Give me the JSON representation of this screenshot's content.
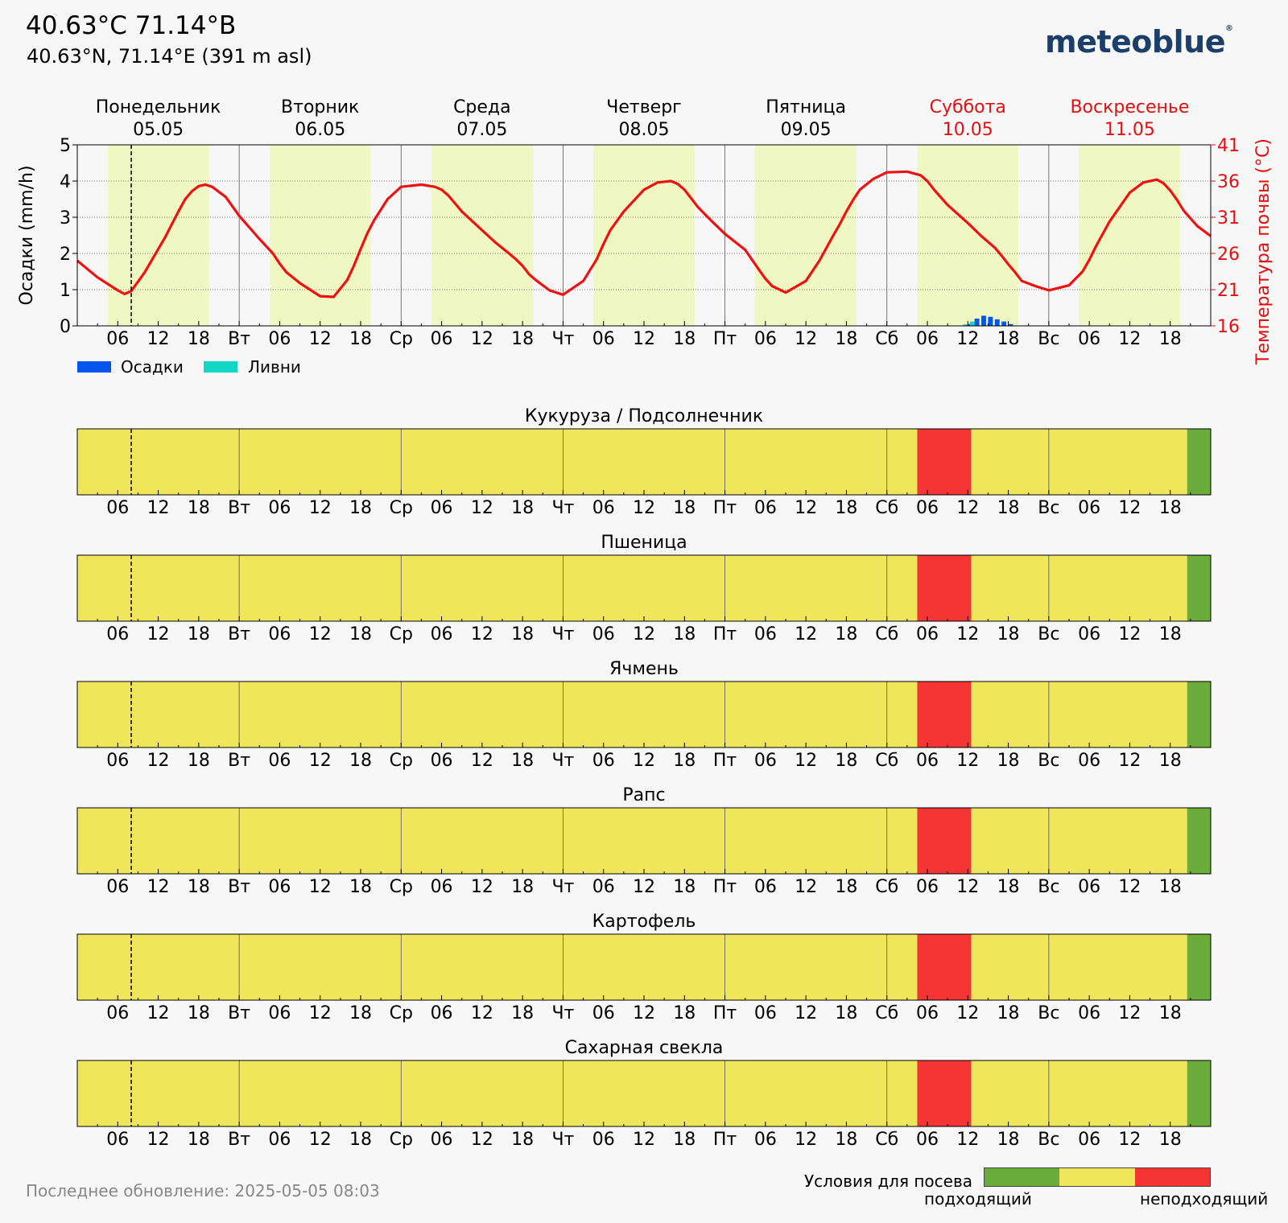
{
  "header": {
    "title": "40.63°C 71.14°B",
    "subtitle": "40.63°N, 71.14°E (391 m asl)",
    "logo": "meteoblue",
    "logo_mark": "®"
  },
  "days": [
    {
      "name": "Понедельник",
      "date": "05.05",
      "weekend": false
    },
    {
      "name": "Вторник",
      "date": "06.05",
      "weekend": false
    },
    {
      "name": "Среда",
      "date": "07.05",
      "weekend": false
    },
    {
      "name": "Четверг",
      "date": "08.05",
      "weekend": false
    },
    {
      "name": "Пятница",
      "date": "09.05",
      "weekend": false
    },
    {
      "name": "Суббота",
      "date": "10.05",
      "weekend": true
    },
    {
      "name": "Воскресенье",
      "date": "11.05",
      "weekend": true
    }
  ],
  "x_tick_labels": [
    "",
    "06",
    "12",
    "18",
    "Вт",
    "06",
    "12",
    "18",
    "Ср",
    "06",
    "12",
    "18",
    "Чт",
    "06",
    "12",
    "18",
    "Пт",
    "06",
    "12",
    "18",
    "Сб",
    "06",
    "12",
    "18",
    "Вс",
    "06",
    "12",
    "18"
  ],
  "chart_data": [
    {
      "type": "line",
      "name": "precipitation-soil-temperature",
      "x_unit": "hours since 2025-05-05 00:00",
      "x_range": [
        0,
        168
      ],
      "now_marker": 8,
      "left_axis": {
        "label": "Осадки (mm/h)",
        "range": [
          0,
          5
        ],
        "ticks": [
          0,
          1,
          2,
          3,
          4,
          5
        ]
      },
      "right_axis": {
        "label": "Температура почвы (°C)",
        "range": [
          16,
          41
        ],
        "ticks": [
          16,
          21,
          26,
          31,
          36,
          41
        ]
      },
      "daylight": [
        [
          4.5,
          19.5
        ],
        [
          28.5,
          43.5
        ],
        [
          52.5,
          67.5
        ],
        [
          76.5,
          91.5
        ],
        [
          100.5,
          115.5
        ],
        [
          124.5,
          139.5
        ],
        [
          148.5,
          163.5
        ]
      ],
      "soil_temperature": {
        "color": "#ee1111",
        "x": [
          0,
          3,
          6,
          7,
          8,
          10,
          12,
          13,
          14,
          15,
          16,
          17,
          18,
          19,
          20,
          22,
          24,
          27,
          29,
          30,
          31,
          33,
          36,
          38,
          40,
          41,
          42,
          43,
          44,
          46,
          48,
          51,
          53,
          54,
          55,
          57,
          60,
          62,
          64,
          65,
          66,
          67,
          68,
          70,
          72,
          75,
          77,
          78,
          79,
          81,
          84,
          86,
          88,
          89,
          90,
          91,
          92,
          94,
          96,
          99,
          101,
          102,
          103,
          105,
          108,
          110,
          112,
          113,
          114,
          115,
          116,
          118,
          120,
          123,
          125,
          126,
          127,
          129,
          132,
          134,
          136,
          137,
          138,
          139,
          140,
          142,
          144,
          147,
          149,
          150,
          151,
          153,
          156,
          158,
          160,
          161,
          162,
          163,
          164,
          166,
          168
        ],
        "y": [
          25.0,
          22.7,
          20.9,
          20.4,
          20.8,
          23.4,
          26.6,
          28.2,
          30.0,
          31.8,
          33.5,
          34.6,
          35.3,
          35.5,
          35.2,
          33.8,
          31.2,
          28.0,
          26.0,
          24.6,
          23.4,
          21.9,
          20.1,
          20.0,
          22.3,
          24.3,
          26.6,
          28.8,
          30.6,
          33.5,
          35.2,
          35.5,
          35.2,
          34.8,
          34.0,
          31.8,
          29.2,
          27.5,
          26.0,
          25.2,
          24.3,
          23.1,
          22.3,
          20.9,
          20.3,
          22.2,
          25.2,
          27.3,
          29.2,
          31.8,
          34.8,
          35.8,
          36.0,
          35.6,
          34.8,
          33.6,
          32.4,
          30.5,
          28.7,
          26.5,
          23.8,
          22.5,
          21.5,
          20.6,
          22.2,
          25.0,
          28.4,
          30.0,
          31.8,
          33.4,
          34.8,
          36.3,
          37.2,
          37.3,
          36.8,
          36.0,
          34.8,
          32.7,
          30.2,
          28.4,
          26.8,
          25.7,
          24.5,
          23.4,
          22.2,
          21.5,
          20.9,
          21.6,
          23.5,
          25.1,
          27.0,
          30.4,
          34.4,
          35.8,
          36.2,
          35.7,
          34.7,
          33.4,
          31.9,
          29.8,
          28.4
        ]
      }
    }
  ],
  "bars_layout_note": "",
  "precipitation": {
    "color": "#0055ee",
    "bars_x": [
      132,
      133,
      134,
      135,
      136,
      137,
      138
    ],
    "bars_y": [
      0.05,
      0.2,
      0.28,
      0.25,
      0.18,
      0.12,
      0.05
    ]
  },
  "showers": {
    "color": "#11d6c5",
    "bars_x": [
      132,
      133
    ],
    "bars_y": [
      0.04,
      0.12
    ]
  },
  "legend": {
    "precip": "Осадки",
    "showers": "Ливни"
  },
  "crops": [
    {
      "title": "Кукуруза / Подсолнечник"
    },
    {
      "title": "Пшеница"
    },
    {
      "title": "Ячмень"
    },
    {
      "title": "Рапс"
    },
    {
      "title": "Картофель"
    },
    {
      "title": "Сахарная свекла"
    }
  ],
  "sowing_segments": [
    {
      "from": 0,
      "to": 124.5,
      "status": "neutral"
    },
    {
      "from": 124.5,
      "to": 132.5,
      "status": "unsuitable"
    },
    {
      "from": 132.5,
      "to": 164.5,
      "status": "neutral"
    },
    {
      "from": 164.5,
      "to": 168,
      "status": "suitable"
    }
  ],
  "sowing_colors": {
    "suitable": "#6aad3a",
    "neutral": "#f0e65c",
    "unsuitable": "#f53434"
  },
  "sowing_legend": {
    "title": "Условия для посева",
    "good": "подходящий",
    "bad": "неподходящий"
  },
  "footer": {
    "updated": "Последнее обновление: 2025-05-05 08:03"
  },
  "colors": {
    "weekend": "#e01010",
    "temperature_axis": "#e01010",
    "daylight": "#eff7c3",
    "logo": "#1b3f6a"
  }
}
